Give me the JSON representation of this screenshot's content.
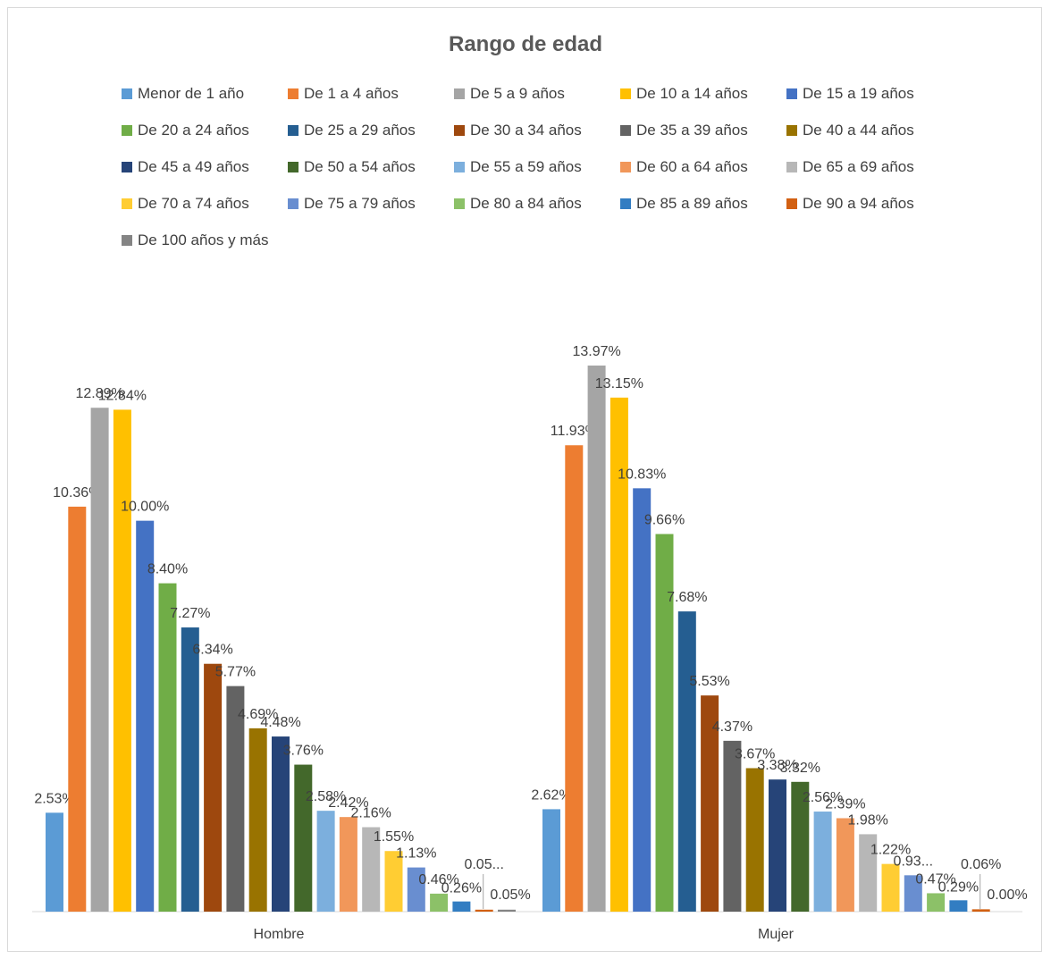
{
  "chart_data": {
    "type": "bar",
    "title": "Rango de edad",
    "categories": [
      "Hombre",
      "Mujer"
    ],
    "series": [
      {
        "name": "Menor de 1 año",
        "color": "#5b9bd5",
        "values": [
          2.53,
          2.62
        ],
        "labels": [
          "2.53%",
          "2.62%"
        ]
      },
      {
        "name": "De 1 a 4 años",
        "color": "#ed7d31",
        "values": [
          10.36,
          11.93
        ],
        "labels": [
          "10.36%",
          "11.93%"
        ]
      },
      {
        "name": "De 5 a 9 años",
        "color": "#a5a5a5",
        "values": [
          12.89,
          13.97
        ],
        "labels": [
          "12.89%",
          "13.97%"
        ]
      },
      {
        "name": "De 10 a 14 años",
        "color": "#ffc000",
        "values": [
          12.84,
          13.15
        ],
        "labels": [
          "12.84%",
          "13.15%"
        ]
      },
      {
        "name": "De 15 a 19 años",
        "color": "#4472c4",
        "values": [
          10.0,
          10.83
        ],
        "labels": [
          "10.00%",
          "10.83%"
        ]
      },
      {
        "name": "De 20 a 24 años",
        "color": "#70ad47",
        "values": [
          8.4,
          9.66
        ],
        "labels": [
          "8.40%",
          "9.66%"
        ]
      },
      {
        "name": "De 25 a 29 años",
        "color": "#255e91",
        "values": [
          7.27,
          7.68
        ],
        "labels": [
          "7.27%",
          "7.68%"
        ]
      },
      {
        "name": "De 30 a 34 años",
        "color": "#9e480e",
        "values": [
          6.34,
          5.53
        ],
        "labels": [
          "6.34%",
          "5.53%"
        ]
      },
      {
        "name": "De 35 a 39 años",
        "color": "#636363",
        "values": [
          5.77,
          4.37
        ],
        "labels": [
          "5.77%",
          "4.37%"
        ]
      },
      {
        "name": "De 40 a 44 años",
        "color": "#997300",
        "values": [
          4.69,
          3.67
        ],
        "labels": [
          "4.69%",
          "3.67%"
        ]
      },
      {
        "name": "De 45 a 49 años",
        "color": "#264478",
        "values": [
          4.48,
          3.38
        ],
        "labels": [
          "4.48%",
          "3.38%"
        ]
      },
      {
        "name": "De 50 a 54 años",
        "color": "#43682b",
        "values": [
          3.76,
          3.32
        ],
        "labels": [
          "3.76%",
          "3.32%"
        ]
      },
      {
        "name": "De 55 a 59 años",
        "color": "#7cafdd",
        "values": [
          2.58,
          2.56
        ],
        "labels": [
          "2.58%",
          "2.56%"
        ]
      },
      {
        "name": "De 60 a 64 años",
        "color": "#f1975a",
        "values": [
          2.42,
          2.39
        ],
        "labels": [
          "2.42%",
          "2.39%"
        ]
      },
      {
        "name": "De 65 a 69 años",
        "color": "#b7b7b7",
        "values": [
          2.16,
          1.98
        ],
        "labels": [
          "2.16%",
          "1.98%"
        ]
      },
      {
        "name": "De 70 a 74 años",
        "color": "#ffcd33",
        "values": [
          1.55,
          1.22
        ],
        "labels": [
          "1.55%",
          "1.22%"
        ]
      },
      {
        "name": "De 75 a 79 años",
        "color": "#698ed0",
        "values": [
          1.13,
          0.93
        ],
        "labels": [
          "1.13%",
          "0.93..."
        ]
      },
      {
        "name": "De 80 a 84 años",
        "color": "#8cc168",
        "values": [
          0.46,
          0.47
        ],
        "labels": [
          "0.46%",
          "0.47%"
        ]
      },
      {
        "name": "De 85 a 89 años",
        "color": "#327dc2",
        "values": [
          0.26,
          0.29
        ],
        "labels": [
          "0.26%",
          "0.29%"
        ]
      },
      {
        "name": "De 90 a 94 años",
        "color": "#d26012",
        "values": [
          0.05,
          0.06
        ],
        "labels": [
          "0.05...",
          "0.06%"
        ]
      },
      {
        "name": "De 100 años y más",
        "color": "#848484",
        "values": [
          0.05,
          0.0
        ],
        "labels": [
          "0.05%",
          "0.00%"
        ]
      }
    ],
    "ylim": [
      0,
      15
    ],
    "grid": false,
    "legend_position": "top",
    "axis_color": "#d9d9d9",
    "label_color": "#404040"
  }
}
